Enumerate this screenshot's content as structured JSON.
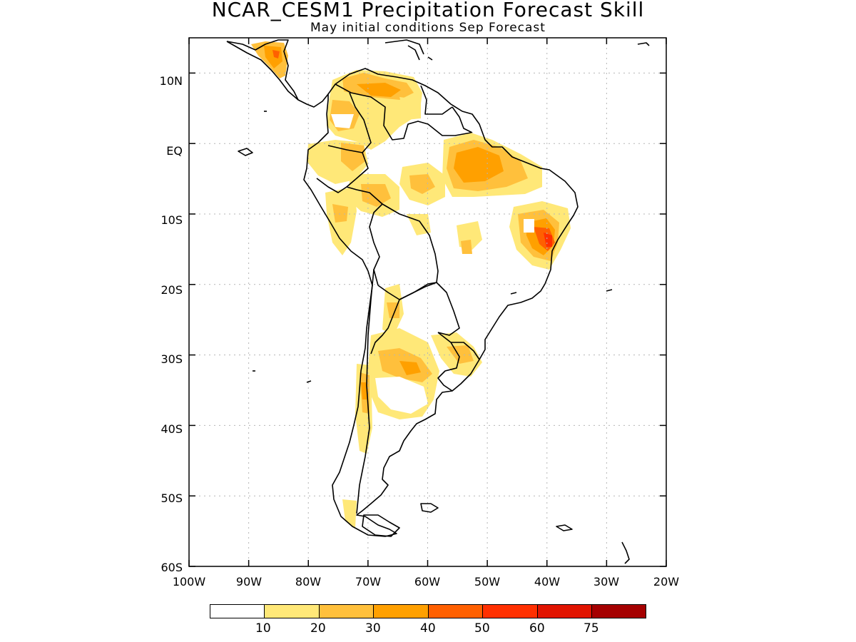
{
  "header": {
    "title": "NCAR_CESM1 Precipitation Forecast Skill",
    "subtitle": "May initial conditions  Sep Forecast"
  },
  "axes": {
    "x_ticks": [
      "100W",
      "90W",
      "80W",
      "70W",
      "60W",
      "50W",
      "40W",
      "30W",
      "20W"
    ],
    "y_ticks": [
      "10N",
      "EQ",
      "10S",
      "20S",
      "30S",
      "40S",
      "50S",
      "60S"
    ],
    "lon_range": [
      -100,
      -20
    ],
    "lat_range": [
      -60,
      15
    ],
    "grid": true
  },
  "colorbar": {
    "labels": [
      "10",
      "20",
      "30",
      "40",
      "50",
      "60",
      "75"
    ],
    "colors": [
      "#ffffff",
      "#ffe878",
      "#ffc03c",
      "#ffa000",
      "#ff6000",
      "#ff3000",
      "#e11400",
      "#a50000"
    ]
  }
}
